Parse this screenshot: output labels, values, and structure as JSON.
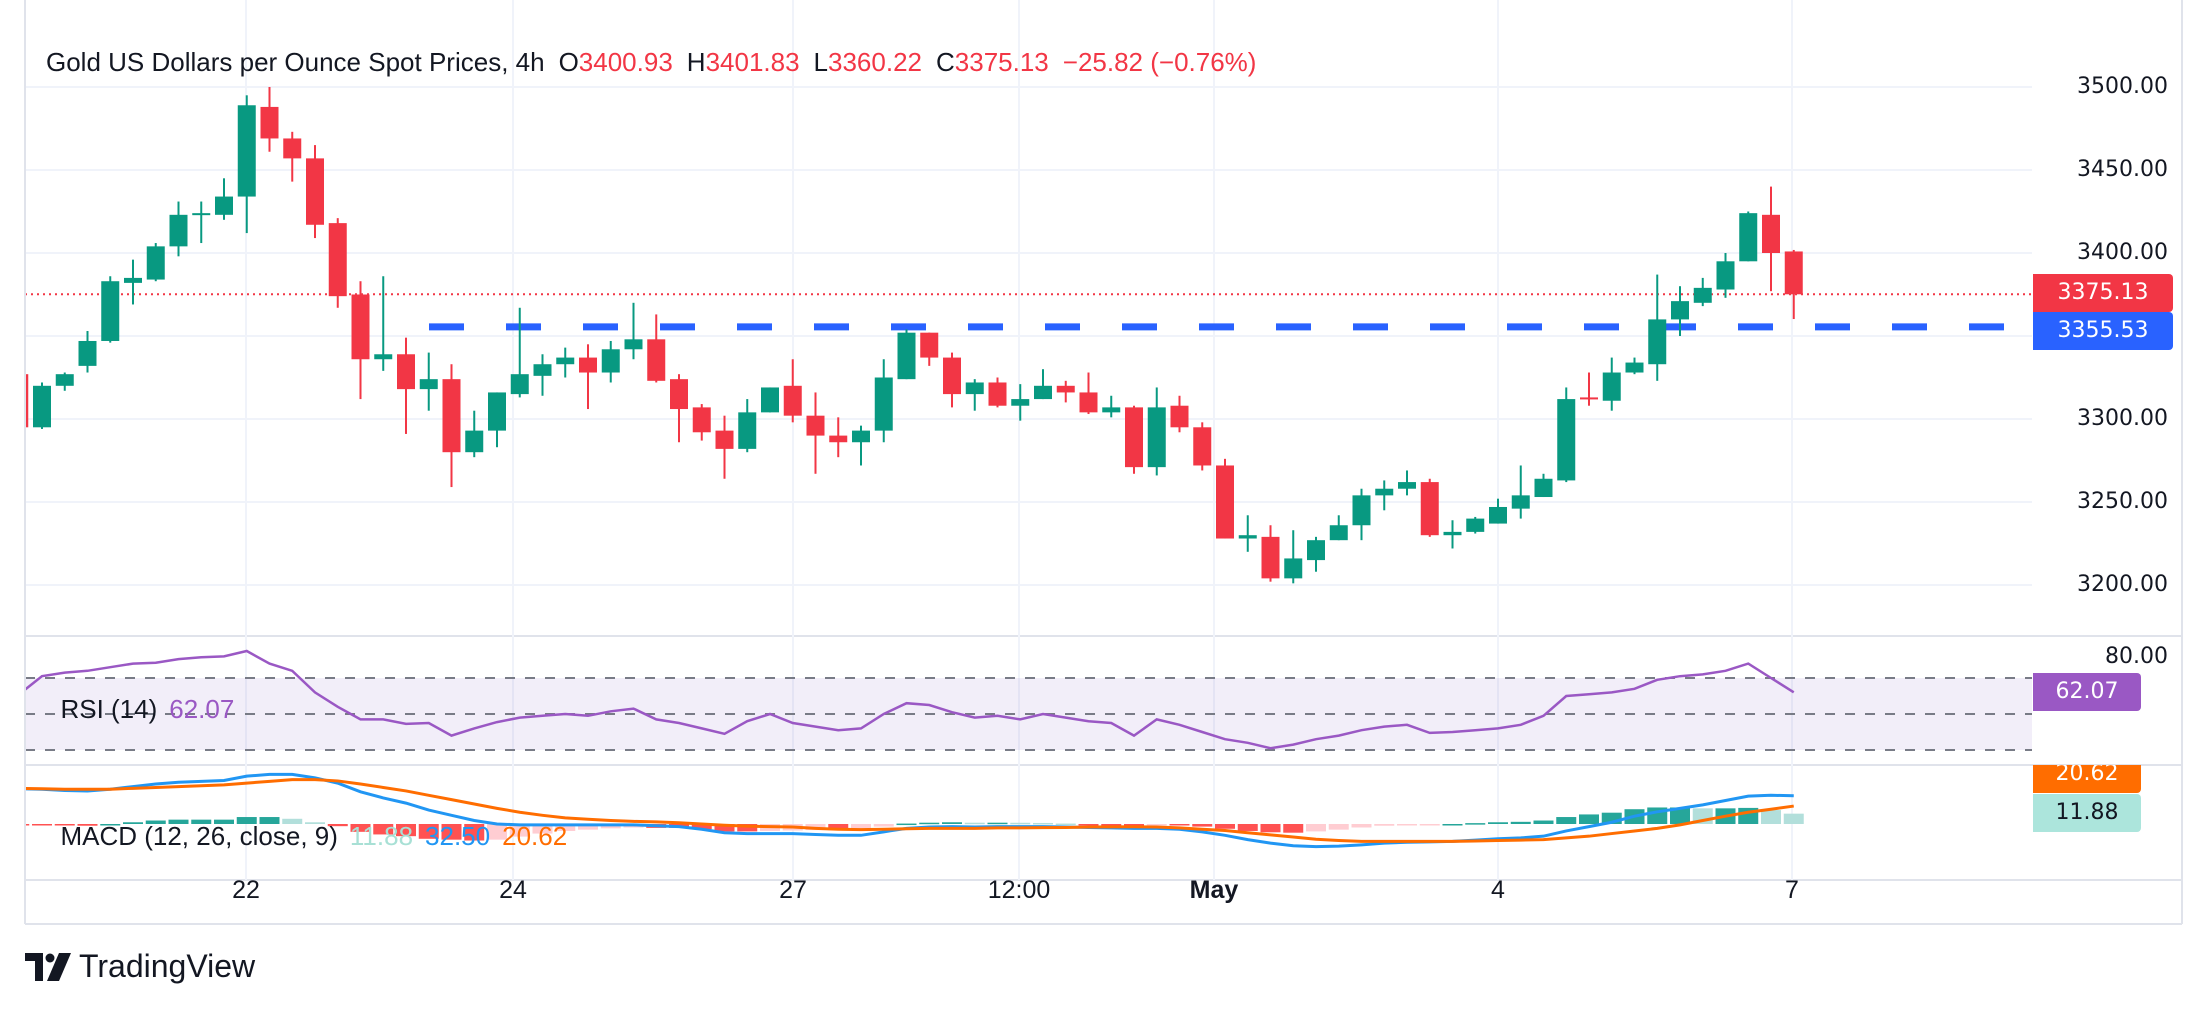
{
  "header": {
    "title": "Gold US Dollars per Ounce Spot Prices, 4h",
    "open_label": "O",
    "open": "3400.93",
    "high_label": "H",
    "high": "3401.83",
    "low_label": "L",
    "low": "3360.22",
    "close_label": "C",
    "close": "3375.13",
    "change": "−25.82 (−0.76%)"
  },
  "price_axis": {
    "ticks": [
      "3500.00",
      "3450.00",
      "3400.00",
      "3300.00",
      "3250.00",
      "3200.00"
    ],
    "last_price_tag": "3375.13",
    "level_tag": "3355.53"
  },
  "rsi": {
    "label": "RSI (14)",
    "value": "62.07",
    "axis_label": "80.00",
    "tag": "62.07"
  },
  "macd": {
    "label": "MACD (12, 26, close, 9)",
    "hist_value": "11.88",
    "macd_value": "32.50",
    "signal_value": "20.62",
    "signal_tag": "20.62",
    "hist_tag": "11.88"
  },
  "time_axis": {
    "labels": [
      "22",
      "24",
      "27",
      "12:00",
      "May",
      "4",
      "7"
    ]
  },
  "branding": {
    "name": "TradingView"
  },
  "colors": {
    "up": "#089981",
    "down": "#f23645",
    "level": "#2962ff",
    "rsi": "#9a58c4",
    "macd": "#2196f3",
    "signal": "#ff6d00",
    "hist_up_strong": "#26a69a",
    "hist_up_weak": "#b2dfdb",
    "hist_down_strong": "#ff5252",
    "hist_down_weak": "#ffcdd2"
  },
  "chart_data": {
    "type": "candlestick",
    "title": "Gold US Dollars per Ounce Spot Prices, 4h",
    "ylim": [
      3170,
      3520
    ],
    "y_ticks": [
      3200,
      3250,
      3300,
      3350,
      3400,
      3450,
      3500
    ],
    "grid": true,
    "horizontal_levels": [
      {
        "value": 3355.53,
        "style": "dashed",
        "color": "#2962ff"
      },
      {
        "value": 3375.13,
        "style": "dotted",
        "color": "#f23645"
      }
    ],
    "ohlc": [
      [
        3327,
        3328,
        3295,
        3295
      ],
      [
        3295,
        3322,
        3294,
        3320
      ],
      [
        3320,
        3328,
        3317,
        3327
      ],
      [
        3332,
        3353,
        3328,
        3347
      ],
      [
        3347,
        3386,
        3346,
        3383
      ],
      [
        3382,
        3396,
        3369,
        3385
      ],
      [
        3384,
        3406,
        3383,
        3404
      ],
      [
        3404,
        3431,
        3398,
        3423
      ],
      [
        3423,
        3431,
        3406,
        3424
      ],
      [
        3423,
        3445,
        3420,
        3434
      ],
      [
        3434,
        3495,
        3412,
        3489
      ],
      [
        3488,
        3500,
        3461,
        3469
      ],
      [
        3469,
        3473,
        3443,
        3457
      ],
      [
        3457,
        3465,
        3409,
        3417
      ],
      [
        3418,
        3421,
        3367,
        3374
      ],
      [
        3375,
        3383,
        3312,
        3336
      ],
      [
        3336,
        3386,
        3329,
        3339
      ],
      [
        3339,
        3349,
        3291,
        3318
      ],
      [
        3318,
        3340,
        3305,
        3324
      ],
      [
        3324,
        3333,
        3259,
        3280
      ],
      [
        3280,
        3305,
        3277,
        3293
      ],
      [
        3293,
        3316,
        3283,
        3316
      ],
      [
        3315,
        3367,
        3313,
        3327
      ],
      [
        3326,
        3339,
        3314,
        3333
      ],
      [
        3333,
        3343,
        3325,
        3337
      ],
      [
        3337,
        3345,
        3306,
        3328
      ],
      [
        3328,
        3347,
        3322,
        3342
      ],
      [
        3342,
        3370,
        3336,
        3348
      ],
      [
        3348,
        3363,
        3322,
        3323
      ],
      [
        3324,
        3327,
        3286,
        3306
      ],
      [
        3307,
        3309,
        3287,
        3292
      ],
      [
        3293,
        3302,
        3264,
        3282
      ],
      [
        3282,
        3312,
        3280,
        3304
      ],
      [
        3304,
        3319,
        3304,
        3319
      ],
      [
        3320,
        3336,
        3298,
        3302
      ],
      [
        3302,
        3316,
        3267,
        3290
      ],
      [
        3290,
        3301,
        3277,
        3286
      ],
      [
        3286,
        3296,
        3272,
        3293
      ],
      [
        3293,
        3336,
        3286,
        3325
      ],
      [
        3324,
        3354,
        3324,
        3352
      ],
      [
        3352,
        3352,
        3332,
        3337
      ],
      [
        3337,
        3340,
        3307,
        3315
      ],
      [
        3315,
        3324,
        3305,
        3322
      ],
      [
        3322,
        3325,
        3307,
        3308
      ],
      [
        3308,
        3321,
        3299,
        3312
      ],
      [
        3312,
        3330,
        3312,
        3320
      ],
      [
        3320,
        3323,
        3310,
        3316
      ],
      [
        3316,
        3328,
        3303,
        3304
      ],
      [
        3304,
        3314,
        3301,
        3307
      ],
      [
        3307,
        3308,
        3267,
        3271
      ],
      [
        3271,
        3319,
        3266,
        3307
      ],
      [
        3308,
        3314,
        3292,
        3295
      ],
      [
        3295,
        3298,
        3269,
        3272
      ],
      [
        3272,
        3276,
        3228,
        3228
      ],
      [
        3228,
        3242,
        3220,
        3230
      ],
      [
        3229,
        3236,
        3202,
        3204
      ],
      [
        3204,
        3233,
        3201,
        3216
      ],
      [
        3215,
        3229,
        3208,
        3227
      ],
      [
        3227,
        3242,
        3227,
        3236
      ],
      [
        3236,
        3258,
        3227,
        3254
      ],
      [
        3254,
        3263,
        3245,
        3258
      ],
      [
        3258,
        3269,
        3254,
        3262
      ],
      [
        3262,
        3264,
        3229,
        3230
      ],
      [
        3230,
        3239,
        3222,
        3232
      ],
      [
        3232,
        3241,
        3231,
        3240
      ],
      [
        3237,
        3252,
        3237,
        3247
      ],
      [
        3246,
        3272,
        3240,
        3254
      ],
      [
        3253,
        3267,
        3253,
        3264
      ],
      [
        3263,
        3319,
        3262,
        3312
      ],
      [
        3313,
        3328,
        3308,
        3312
      ],
      [
        3311,
        3337,
        3305,
        3328
      ],
      [
        3328,
        3337,
        3327,
        3334
      ],
      [
        3333,
        3387,
        3323,
        3360
      ],
      [
        3360,
        3380,
        3350,
        3371
      ],
      [
        3370,
        3385,
        3368,
        3379
      ],
      [
        3378,
        3400,
        3373,
        3395
      ],
      [
        3395,
        3425,
        3395,
        3424
      ],
      [
        3423,
        3440,
        3377,
        3400
      ],
      [
        3400.93,
        3401.83,
        3360.22,
        3375.13
      ]
    ],
    "rsi": {
      "levels": [
        70,
        50,
        30
      ],
      "values": [
        61,
        71,
        73,
        74,
        76,
        78,
        78.5,
        80.5,
        81.5,
        82,
        85,
        78,
        74,
        62,
        54,
        47,
        47,
        44.5,
        45,
        38,
        42,
        45.5,
        48,
        49,
        50,
        49,
        51.5,
        53,
        47,
        45,
        42,
        39,
        46,
        50,
        45,
        43,
        41,
        42,
        50,
        56,
        55,
        51,
        48,
        49,
        47,
        50,
        48,
        46,
        45,
        38,
        47,
        44,
        40,
        36,
        34,
        31,
        33,
        36,
        38,
        41,
        43,
        44,
        39.5,
        40,
        41,
        42,
        44,
        49,
        60,
        61,
        62,
        64,
        69,
        71,
        72,
        74,
        78,
        70,
        62.07
      ]
    },
    "macd": {
      "macd": [
        40.5,
        40,
        38.5,
        38,
        40,
        43,
        46,
        48,
        49,
        50,
        55,
        57,
        57,
        53,
        47,
        37,
        30,
        24,
        16,
        10,
        4,
        0,
        -1,
        -1,
        -1,
        -1,
        -1,
        -1,
        -2,
        -3,
        -6,
        -10,
        -11,
        -11,
        -11,
        -12,
        -13,
        -13,
        -9,
        -5,
        -3.5,
        -3,
        -3.5,
        -3,
        -3,
        -3,
        -3.5,
        -4,
        -4.5,
        -5,
        -5,
        -6,
        -9,
        -13,
        -18,
        -22,
        -25,
        -26,
        -25.5,
        -24,
        -22,
        -21,
        -20.5,
        -20,
        -18.5,
        -17,
        -16,
        -14,
        -8,
        -3,
        2,
        9,
        14,
        18,
        22,
        27,
        32,
        33,
        32.5
      ],
      "signal": [
        41,
        40.5,
        40,
        40,
        40,
        41,
        42,
        43,
        44,
        45,
        47,
        49,
        51,
        51,
        49.5,
        46,
        42,
        38,
        33,
        28,
        23,
        18,
        13.5,
        10,
        7,
        5.5,
        4,
        3,
        2.5,
        1.5,
        0,
        -1.5,
        -2.5,
        -3,
        -3.5,
        -5,
        -6,
        -6.5,
        -6,
        -5.5,
        -5,
        -5,
        -5,
        -4.5,
        -4.4,
        -4.2,
        -4,
        -3.5,
        -3.3,
        -3.2,
        -3.5,
        -4.5,
        -6,
        -7.5,
        -10,
        -12.5,
        -15,
        -17.5,
        -19,
        -20,
        -20,
        -20,
        -20,
        -20,
        -19.5,
        -19,
        -18.5,
        -18,
        -16,
        -14,
        -11,
        -8,
        -5,
        -1,
        4,
        9,
        13.5,
        17,
        20.62
      ],
      "histogram": [
        -0.5,
        -0.5,
        -1.5,
        -2,
        0,
        2,
        4,
        5,
        5,
        5,
        8,
        8,
        6,
        2,
        -2.5,
        -9,
        -12,
        -14,
        -17,
        -18,
        -19,
        -18,
        -14.5,
        -11,
        -8,
        -6.5,
        -5,
        -4,
        -4.5,
        -4.5,
        -6,
        -8.5,
        -8.5,
        -8,
        -7.5,
        -7,
        -7,
        -6.5,
        -3,
        0.5,
        1.5,
        2,
        1.5,
        1.5,
        1.4,
        1.2,
        0.5,
        -0.5,
        -1.2,
        -1.8,
        -1.5,
        -1.5,
        -3,
        -5.5,
        -8,
        -9.5,
        -10,
        -8.5,
        -6.5,
        -4,
        -2,
        -1,
        -0.5,
        0,
        1,
        2,
        2.5,
        4,
        8,
        11,
        13,
        17,
        19,
        19,
        18,
        18,
        18.5,
        16,
        11.88
      ]
    }
  }
}
